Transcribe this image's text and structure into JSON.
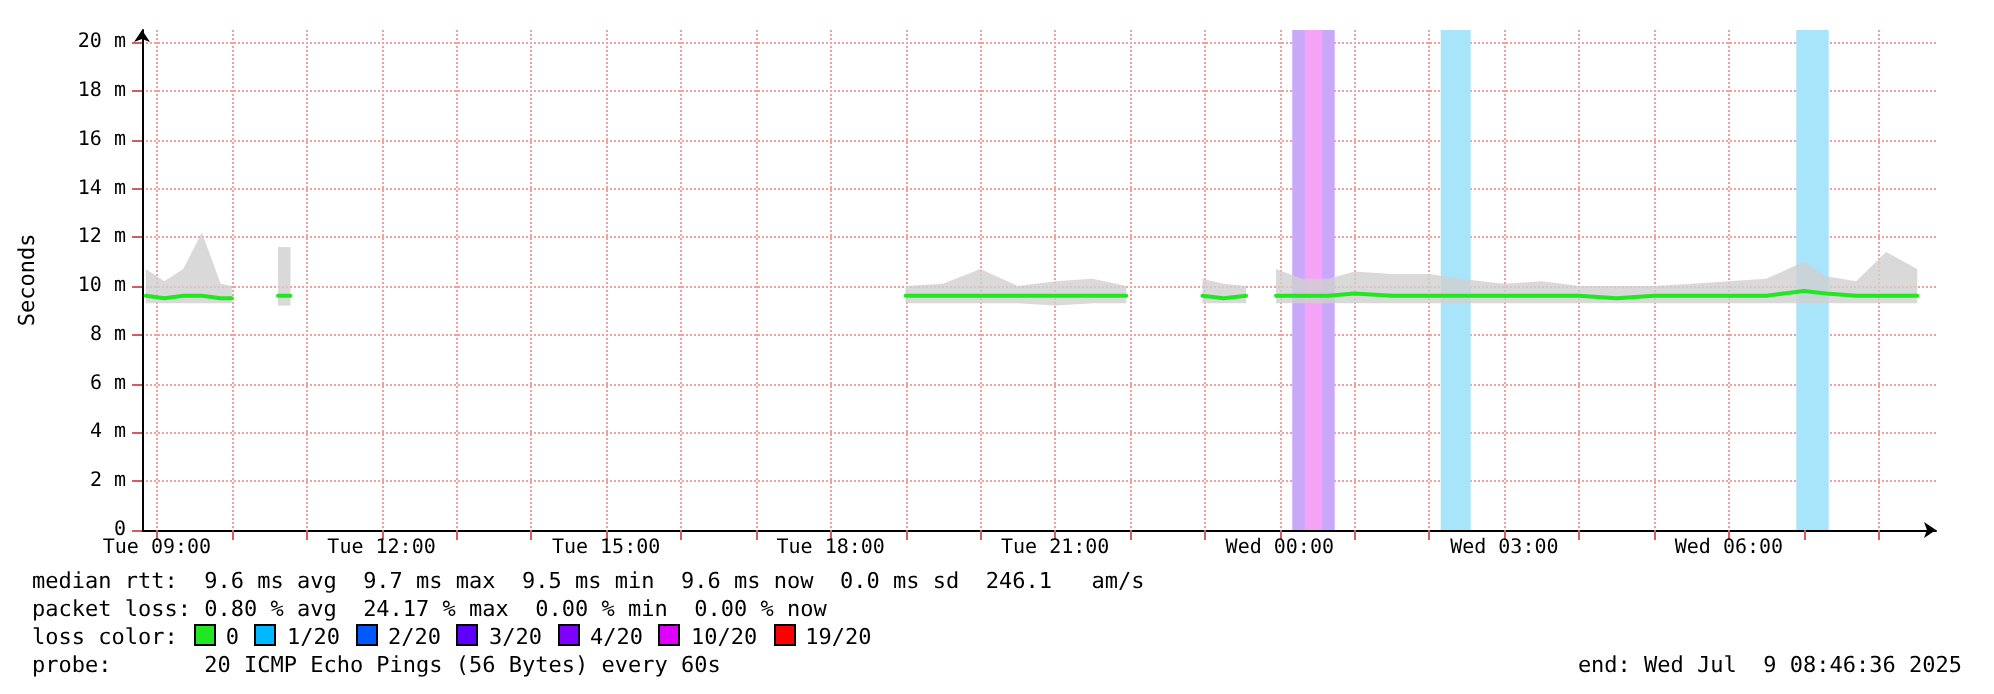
{
  "chart_data": {
    "type": "line",
    "ylabel": "Seconds",
    "x": [
      "2025-07-08T08:51",
      "2025-07-08T09:06",
      "2025-07-08T09:21",
      "2025-07-08T09:36",
      "2025-07-08T09:51",
      "2025-07-08T10:00",
      "2025-07-08T10:18",
      "2025-07-08T10:37",
      "2025-07-08T10:47",
      "2025-07-08T15:00",
      "2025-07-08T19:00",
      "2025-07-08T19:30",
      "2025-07-08T20:00",
      "2025-07-08T20:30",
      "2025-07-08T21:00",
      "2025-07-08T21:30",
      "2025-07-08T21:57",
      "2025-07-08T22:24",
      "2025-07-08T22:58",
      "2025-07-08T23:15",
      "2025-07-08T23:33",
      "2025-07-08T23:45",
      "2025-07-08T23:57",
      "2025-07-09T00:18",
      "2025-07-09T00:39",
      "2025-07-09T01:00",
      "2025-07-09T01:30",
      "2025-07-09T02:00",
      "2025-07-09T02:24",
      "2025-07-09T03:00",
      "2025-07-09T03:30",
      "2025-07-09T04:00",
      "2025-07-09T04:30",
      "2025-07-09T05:00",
      "2025-07-09T05:30",
      "2025-07-09T06:00",
      "2025-07-09T06:30",
      "2025-07-09T07:00",
      "2025-07-09T07:18",
      "2025-07-09T07:42",
      "2025-07-09T08:06",
      "2025-07-09T08:31"
    ],
    "series": [
      {
        "color": "#22e622",
        "values": [
          9.6,
          9.5,
          9.6,
          9.6,
          9.5,
          9.5,
          null,
          9.6,
          9.6,
          null,
          9.6,
          9.6,
          9.6,
          9.6,
          9.6,
          9.6,
          9.6,
          null,
          9.6,
          9.5,
          9.6,
          null,
          9.6,
          9.6,
          9.6,
          9.7,
          9.6,
          9.6,
          9.6,
          9.6,
          9.6,
          9.6,
          9.5,
          9.6,
          9.6,
          9.6,
          9.6,
          9.8,
          9.7,
          9.6,
          9.6,
          9.6
        ],
        "upper": [
          10.7,
          10.2,
          10.7,
          12.2,
          10.1,
          10.0,
          null,
          11.6,
          11.6,
          null,
          10.0,
          10.1,
          10.7,
          10.0,
          10.2,
          10.3,
          10.0,
          null,
          10.3,
          10.1,
          10.0,
          null,
          10.7,
          10.3,
          10.3,
          10.6,
          10.5,
          10.5,
          10.3,
          10.1,
          10.2,
          10.0,
          10.0,
          10.0,
          10.1,
          10.2,
          10.3,
          11.0,
          10.4,
          10.2,
          11.4,
          10.7
        ],
        "lower": [
          9.3,
          9.3,
          9.3,
          9.3,
          9.3,
          9.3,
          null,
          9.2,
          9.2,
          null,
          9.3,
          9.3,
          9.3,
          9.3,
          9.2,
          9.3,
          9.3,
          null,
          9.3,
          9.3,
          9.3,
          null,
          9.3,
          9.3,
          9.3,
          9.3,
          9.3,
          9.3,
          9.3,
          9.3,
          9.3,
          9.3,
          9.3,
          9.3,
          9.3,
          9.3,
          9.3,
          9.3,
          9.3,
          9.3,
          9.3,
          9.3
        ]
      }
    ],
    "xlim": [
      "2025-07-08T08:48",
      "2025-07-09T08:46"
    ],
    "xticks": [
      {
        "value": "2025-07-08T09:00",
        "label": "Tue 09:00"
      },
      {
        "value": "2025-07-08T10:00",
        "label": null
      },
      {
        "value": "2025-07-08T11:00",
        "label": null
      },
      {
        "value": "2025-07-08T12:00",
        "label": "Tue 12:00"
      },
      {
        "value": "2025-07-08T13:00",
        "label": null
      },
      {
        "value": "2025-07-08T14:00",
        "label": null
      },
      {
        "value": "2025-07-08T15:00",
        "label": "Tue 15:00"
      },
      {
        "value": "2025-07-08T16:00",
        "label": null
      },
      {
        "value": "2025-07-08T17:00",
        "label": null
      },
      {
        "value": "2025-07-08T18:00",
        "label": "Tue 18:00"
      },
      {
        "value": "2025-07-08T19:00",
        "label": null
      },
      {
        "value": "2025-07-08T20:00",
        "label": null
      },
      {
        "value": "2025-07-08T21:00",
        "label": "Tue 21:00"
      },
      {
        "value": "2025-07-08T22:00",
        "label": null
      },
      {
        "value": "2025-07-08T23:00",
        "label": null
      },
      {
        "value": "2025-07-09T00:00",
        "label": "Wed 00:00"
      },
      {
        "value": "2025-07-09T01:00",
        "label": null
      },
      {
        "value": "2025-07-09T02:00",
        "label": null
      },
      {
        "value": "2025-07-09T03:00",
        "label": "Wed 03:00"
      },
      {
        "value": "2025-07-09T04:00",
        "label": null
      },
      {
        "value": "2025-07-09T05:00",
        "label": null
      },
      {
        "value": "2025-07-09T06:00",
        "label": "Wed 06:00"
      },
      {
        "value": "2025-07-09T07:00",
        "label": null
      },
      {
        "value": "2025-07-09T08:00",
        "label": null
      }
    ],
    "ylim": [
      0,
      20.5
    ],
    "yticks": [
      0,
      {
        "value": 2,
        "label": "2 m"
      },
      {
        "value": 4,
        "label": "4 m"
      },
      {
        "value": 6,
        "label": "6 m"
      },
      {
        "value": 8,
        "label": "8 m"
      },
      {
        "value": 10,
        "label": "10 m"
      },
      {
        "value": 12,
        "label": "12 m"
      },
      {
        "value": 14,
        "label": "14 m"
      },
      {
        "value": 16,
        "label": "16 m"
      },
      {
        "value": 18,
        "label": "18 m"
      },
      {
        "value": 20,
        "label": "20 m"
      }
    ],
    "bands": [
      {
        "axis": "x",
        "from": "2025-07-09T00:10",
        "to": "2025-07-09T00:44",
        "color": "#c9a8fa"
      },
      {
        "axis": "x",
        "from": "2025-07-09T00:20",
        "to": "2025-07-09T00:34",
        "color": "#f4a4f6"
      },
      {
        "axis": "x",
        "from": "2025-07-09T02:09",
        "to": "2025-07-09T02:33",
        "color": "#a8e4fa"
      },
      {
        "axis": "x",
        "from": "2025-07-09T06:54",
        "to": "2025-07-09T07:20",
        "color": "#a8e4fa"
      }
    ],
    "grid": true,
    "marker": "none",
    "annotations": [
      "median rtt:  9.6 ms avg  9.7 ms max  9.5 ms min  9.6 ms now  0.0 ms sd  246.1   am/s",
      "packet loss: 0.80 % avg  24.17 % max  0.00 % min  0.00 % now",
      "loss color:",
      "0",
      "1/20",
      "2/20",
      "3/20",
      "4/20",
      "10/20",
      "19/20",
      "probe:       20 ICMP Echo Pings (56 Bytes) every 60s",
      "end: Wed Jul  9 08:46:36 2025"
    ]
  }
}
